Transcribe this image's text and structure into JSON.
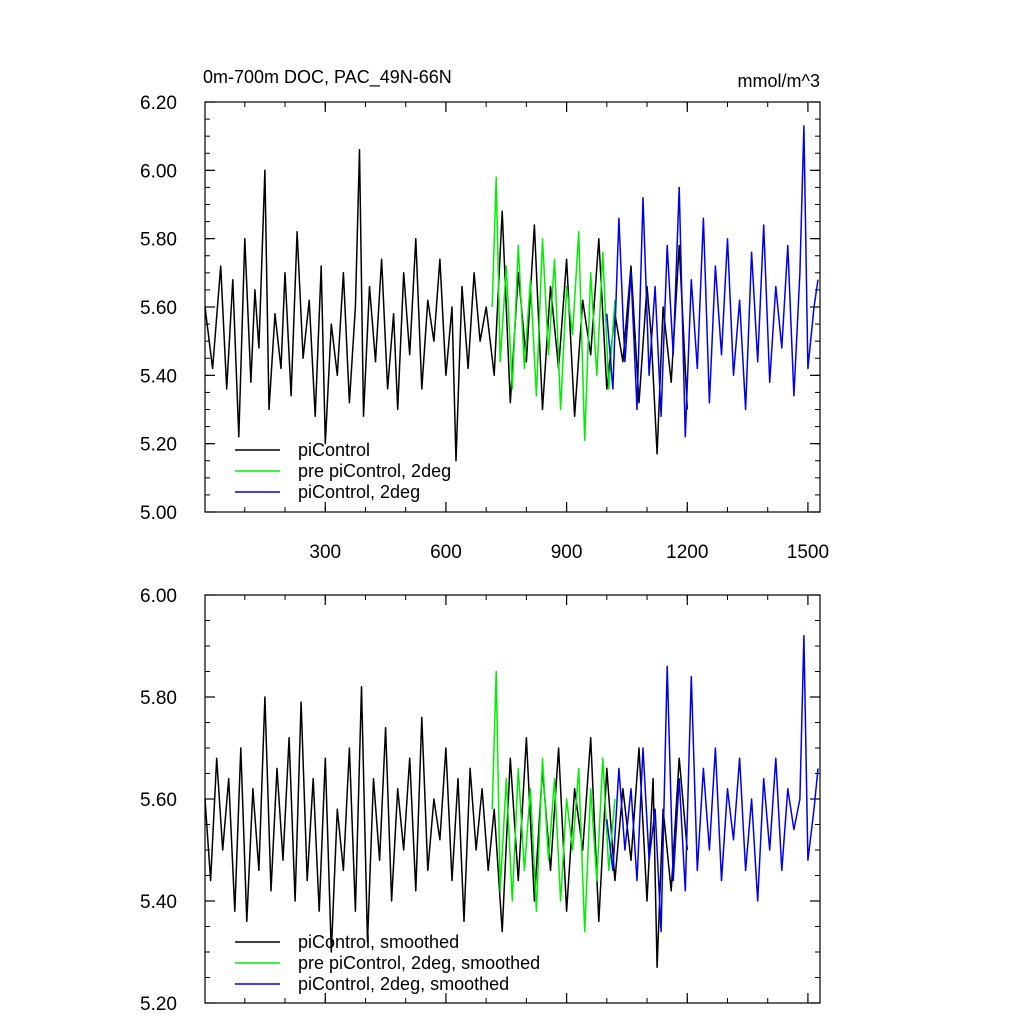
{
  "figure": {
    "title": "0m-700m DOC, PAC_49N-66N",
    "units": "mmol/m^3"
  },
  "chart_data": [
    {
      "type": "line",
      "title": "0m-700m DOC, PAC_49N-66N",
      "units": "mmol/m^3",
      "xlim": [
        1,
        1530
      ],
      "ylim": [
        5.0,
        6.2
      ],
      "x_ticks": [
        300,
        600,
        900,
        1200,
        1500
      ],
      "x_tick_labels": [
        "300",
        "600",
        "900",
        "1200",
        "1500"
      ],
      "y_ticks": [
        5.0,
        5.2,
        5.4,
        5.6,
        5.8,
        6.0,
        6.2
      ],
      "y_tick_labels": [
        "5.00",
        "5.20",
        "5.40",
        "5.60",
        "5.80",
        "6.00",
        "6.20"
      ],
      "grid": false,
      "legend_position": "bottom-left",
      "series": [
        {
          "name": "piControl",
          "color": "#000000",
          "x": [
            1,
            20,
            40,
            55,
            70,
            85,
            100,
            115,
            125,
            135,
            150,
            160,
            175,
            190,
            200,
            215,
            230,
            245,
            260,
            275,
            290,
            300,
            315,
            330,
            345,
            360,
            375,
            385,
            395,
            410,
            425,
            440,
            455,
            470,
            480,
            495,
            510,
            525,
            540,
            555,
            570,
            585,
            600,
            615,
            625,
            640,
            655,
            670,
            685,
            700,
            720,
            740,
            760,
            780,
            800,
            820,
            840,
            860,
            880,
            900,
            920,
            940,
            960,
            980,
            1000,
            1020,
            1040,
            1060,
            1080,
            1100,
            1110,
            1125,
            1140,
            1160,
            1180,
            1200
          ],
          "values": [
            5.6,
            5.42,
            5.72,
            5.36,
            5.68,
            5.22,
            5.8,
            5.38,
            5.65,
            5.48,
            6.0,
            5.3,
            5.58,
            5.42,
            5.7,
            5.34,
            5.82,
            5.45,
            5.62,
            5.28,
            5.72,
            5.2,
            5.55,
            5.4,
            5.7,
            5.32,
            5.6,
            6.06,
            5.28,
            5.66,
            5.44,
            5.74,
            5.36,
            5.58,
            5.3,
            5.7,
            5.46,
            5.8,
            5.36,
            5.62,
            5.5,
            5.74,
            5.4,
            5.6,
            5.15,
            5.66,
            5.42,
            5.7,
            5.5,
            5.6,
            5.4,
            5.88,
            5.32,
            5.7,
            5.44,
            5.84,
            5.3,
            5.66,
            5.42,
            5.74,
            5.28,
            5.62,
            5.46,
            5.8,
            5.36,
            5.58,
            5.44,
            5.72,
            5.32,
            5.66,
            5.52,
            5.17,
            5.6,
            5.38,
            5.78,
            5.3
          ]
        },
        {
          "name": "pre piControl, 2deg",
          "color": "#00ee00",
          "x": [
            715,
            725,
            735,
            750,
            765,
            780,
            795,
            810,
            825,
            840,
            855,
            870,
            885,
            900,
            915,
            930,
            945,
            960,
            975,
            990,
            1005,
            1020
          ],
          "values": [
            5.6,
            5.98,
            5.44,
            5.72,
            5.36,
            5.78,
            5.42,
            5.68,
            5.34,
            5.8,
            5.46,
            5.74,
            5.3,
            5.66,
            5.52,
            5.82,
            5.21,
            5.7,
            5.4,
            5.76,
            5.36,
            5.62
          ]
        },
        {
          "name": "piControl, 2deg",
          "color": "#0000ee",
          "x": [
            1000,
            1015,
            1030,
            1045,
            1060,
            1075,
            1090,
            1105,
            1120,
            1135,
            1150,
            1165,
            1180,
            1195,
            1210,
            1225,
            1240,
            1255,
            1270,
            1285,
            1300,
            1315,
            1330,
            1345,
            1360,
            1375,
            1390,
            1405,
            1420,
            1435,
            1450,
            1465,
            1480,
            1490,
            1500,
            1515,
            1525
          ],
          "values": [
            5.58,
            5.36,
            5.86,
            5.44,
            5.7,
            5.3,
            5.92,
            5.4,
            5.66,
            5.28,
            5.78,
            5.46,
            5.95,
            5.22,
            5.68,
            5.42,
            5.86,
            5.32,
            5.72,
            5.46,
            5.8,
            5.4,
            5.62,
            5.3,
            5.76,
            5.44,
            5.84,
            5.38,
            5.66,
            5.48,
            5.78,
            5.34,
            5.7,
            6.13,
            5.42,
            5.6,
            5.68
          ]
        }
      ]
    },
    {
      "type": "line",
      "title": "",
      "xlim": [
        1,
        1530
      ],
      "ylim": [
        5.2,
        6.0
      ],
      "x_ticks": [
        300,
        600,
        900,
        1200,
        1500
      ],
      "y_ticks": [
        5.2,
        5.4,
        5.6,
        5.8,
        6.0
      ],
      "y_tick_labels": [
        "5.20",
        "5.40",
        "5.60",
        "5.80",
        "6.00"
      ],
      "grid": false,
      "legend_position": "bottom-left",
      "series": [
        {
          "name": "piControl, smoothed",
          "color": "#000000",
          "x": [
            1,
            15,
            30,
            45,
            60,
            75,
            90,
            105,
            120,
            135,
            150,
            165,
            180,
            195,
            210,
            225,
            240,
            255,
            270,
            285,
            300,
            315,
            330,
            345,
            360,
            375,
            390,
            405,
            420,
            435,
            450,
            465,
            480,
            495,
            510,
            525,
            540,
            555,
            570,
            585,
            600,
            615,
            630,
            645,
            660,
            675,
            690,
            705,
            720,
            740,
            760,
            780,
            800,
            820,
            840,
            860,
            880,
            900,
            920,
            940,
            960,
            980,
            1000,
            1020,
            1040,
            1060,
            1080,
            1100,
            1115,
            1125,
            1140,
            1160,
            1180,
            1200
          ],
          "values": [
            5.6,
            5.44,
            5.68,
            5.5,
            5.64,
            5.38,
            5.7,
            5.36,
            5.62,
            5.46,
            5.8,
            5.42,
            5.66,
            5.48,
            5.72,
            5.4,
            5.79,
            5.44,
            5.64,
            5.38,
            5.68,
            5.3,
            5.58,
            5.46,
            5.7,
            5.38,
            5.82,
            5.32,
            5.64,
            5.48,
            5.74,
            5.4,
            5.62,
            5.5,
            5.68,
            5.42,
            5.76,
            5.46,
            5.6,
            5.52,
            5.7,
            5.44,
            5.64,
            5.36,
            5.66,
            5.5,
            5.62,
            5.46,
            5.58,
            5.34,
            5.68,
            5.44,
            5.72,
            5.4,
            5.66,
            5.46,
            5.7,
            5.38,
            5.62,
            5.5,
            5.72,
            5.36,
            5.66,
            5.44,
            5.62,
            5.48,
            5.7,
            5.4,
            5.64,
            5.27,
            5.58,
            5.42,
            5.68,
            5.5
          ]
        },
        {
          "name": "pre piControl, 2deg, smoothed",
          "color": "#00ee00",
          "x": [
            715,
            725,
            735,
            750,
            765,
            780,
            795,
            810,
            825,
            840,
            855,
            870,
            885,
            900,
            915,
            930,
            945,
            960,
            975,
            990,
            1005,
            1020
          ],
          "values": [
            5.58,
            5.85,
            5.42,
            5.64,
            5.4,
            5.66,
            5.46,
            5.62,
            5.38,
            5.68,
            5.48,
            5.64,
            5.4,
            5.6,
            5.5,
            5.66,
            5.34,
            5.62,
            5.44,
            5.68,
            5.46,
            5.6
          ]
        },
        {
          "name": "piControl, 2deg, smoothed",
          "color": "#0000ee",
          "x": [
            1000,
            1015,
            1030,
            1045,
            1060,
            1075,
            1090,
            1105,
            1120,
            1135,
            1150,
            1165,
            1180,
            1195,
            1210,
            1225,
            1240,
            1255,
            1270,
            1285,
            1300,
            1315,
            1330,
            1345,
            1360,
            1375,
            1390,
            1405,
            1420,
            1435,
            1450,
            1465,
            1480,
            1490,
            1500,
            1515,
            1525
          ],
          "values": [
            5.56,
            5.46,
            5.66,
            5.5,
            5.62,
            5.44,
            5.7,
            5.48,
            5.58,
            5.34,
            5.86,
            5.44,
            5.64,
            5.42,
            5.84,
            5.46,
            5.66,
            5.5,
            5.7,
            5.44,
            5.62,
            5.52,
            5.68,
            5.46,
            5.6,
            5.4,
            5.64,
            5.5,
            5.68,
            5.46,
            5.62,
            5.54,
            5.6,
            5.92,
            5.48,
            5.58,
            5.66
          ]
        }
      ]
    }
  ]
}
